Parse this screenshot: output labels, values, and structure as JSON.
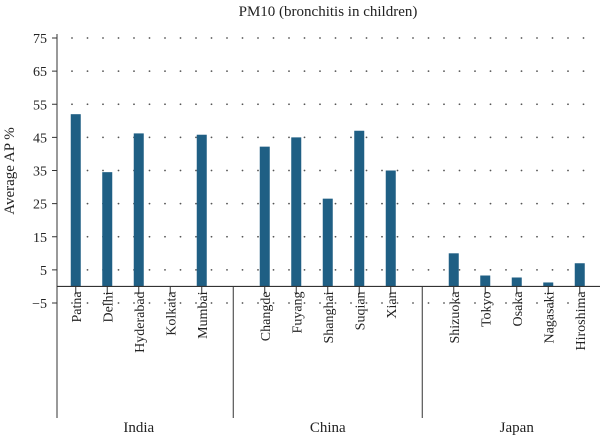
{
  "chart_data": {
    "type": "bar",
    "title": "PM10 (bronchitis in children)",
    "xlabel": "",
    "ylabel": "Average AP %",
    "ylim": [
      -5,
      75
    ],
    "yticks": [
      -5,
      5,
      15,
      25,
      35,
      45,
      55,
      65,
      75
    ],
    "grid": "dotted",
    "bar_color": "#1f5f84",
    "groups": [
      {
        "name": "India",
        "categories": [
          "Patna",
          "Delhi",
          "Hyderabad",
          "Kolkata",
          "Mumbai"
        ],
        "values": [
          52,
          34.5,
          46.2,
          null,
          45.8
        ]
      },
      {
        "name": "China",
        "categories": [
          "Changde",
          "Fuyang",
          "Shanghai",
          "Suqian",
          "Xian"
        ],
        "values": [
          42.2,
          45,
          26.5,
          47,
          35
        ]
      },
      {
        "name": "Japan",
        "categories": [
          "Shizuoka",
          "Tokyo",
          "Osaka",
          "Nagasaki",
          "Hiroshima"
        ],
        "values": [
          10,
          3.3,
          2.7,
          1.2,
          7
        ]
      }
    ]
  }
}
